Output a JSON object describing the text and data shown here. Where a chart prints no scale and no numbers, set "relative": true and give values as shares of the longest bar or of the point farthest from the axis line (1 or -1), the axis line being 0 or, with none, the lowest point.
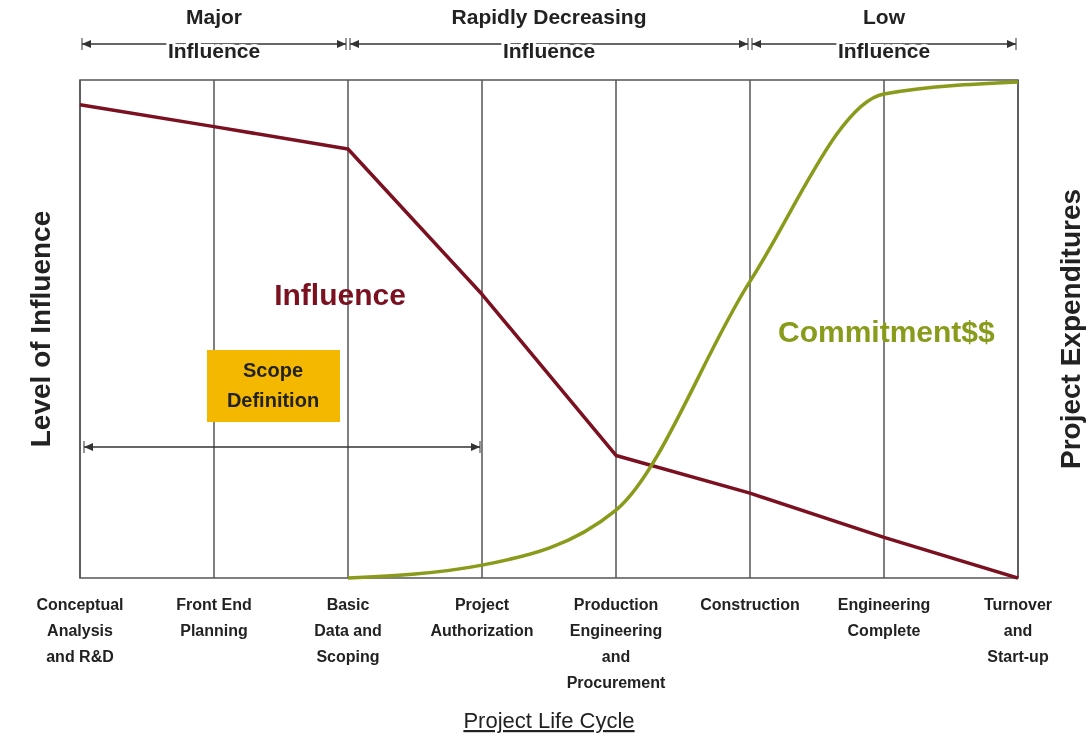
{
  "chart_data": {
    "type": "line",
    "relative": true,
    "xlabel": "Project Life Cycle",
    "ylabel": "Level of Influence",
    "y2label": "Project Expenditures",
    "categories": [
      "Conceptual Analysis and R&D",
      "Front End Planning",
      "Basic Data and Scoping",
      "Project Authorization",
      "Production Engineering and Procurement",
      "Construction",
      "Engineering Complete",
      "Turnover and Start-up"
    ],
    "series": [
      {
        "name": "Influence",
        "color": "#7a1020",
        "values": [
          0.954,
          0.91,
          0.865,
          0.572,
          0.247,
          0.171,
          0.082,
          0
        ]
      },
      {
        "name": "Commitment$$",
        "color": "#8a9a1a",
        "axis": "y2",
        "values": [
          null,
          null,
          0,
          0.026,
          0.137,
          0.598,
          0.976,
          1
        ]
      }
    ],
    "annotations": [
      "Major Influence",
      "Rapidly Decreasing Influence",
      "Low Influence",
      "Scope Definition"
    ],
    "grid": "x",
    "legend": false
  }
}
